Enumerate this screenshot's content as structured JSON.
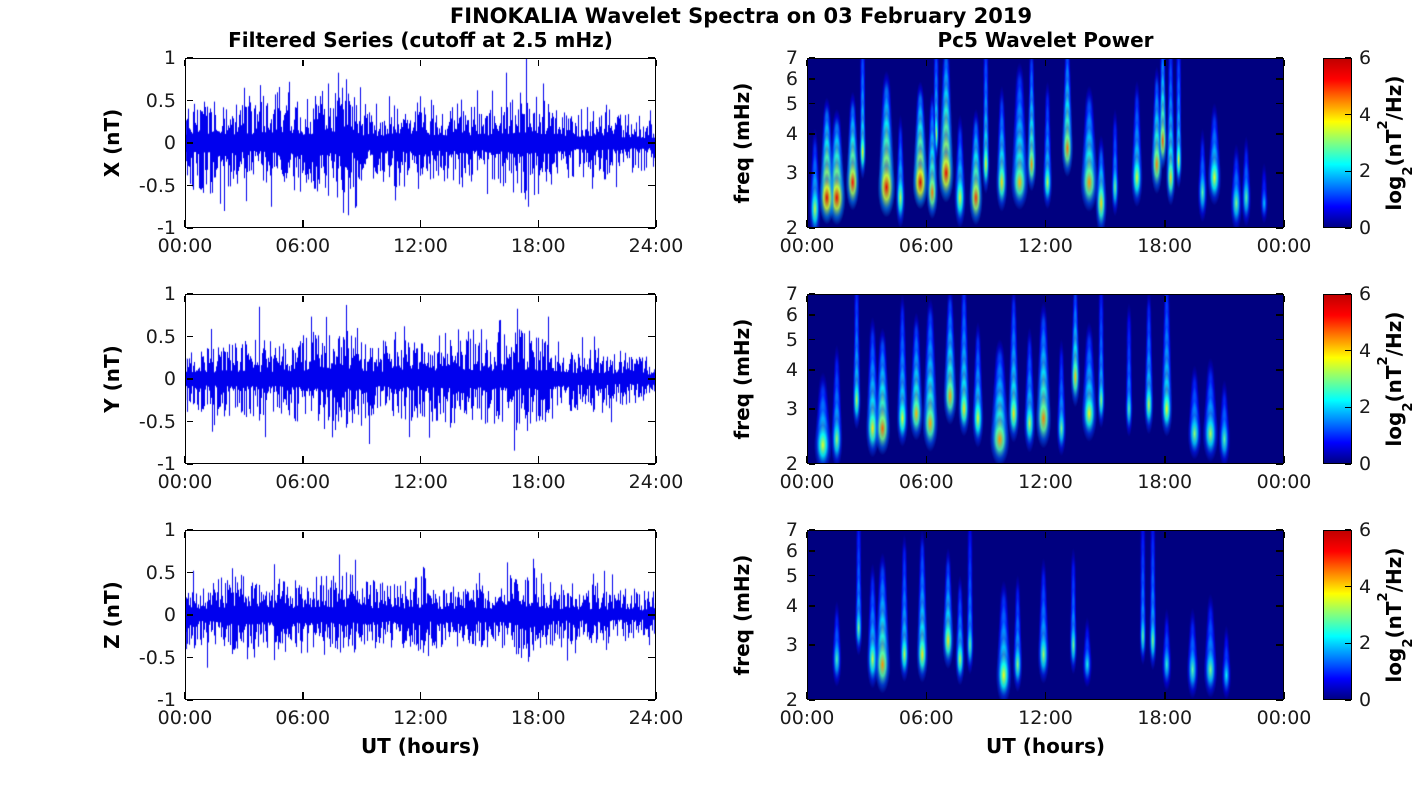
{
  "chart_data": {
    "figure_title": "FINOKALIA Wavelet Spectra on 03 February 2019",
    "filtered_series": {
      "type": "line",
      "title": "Filtered Series (cutoff at 2.5 mHz)",
      "xlabel": "UT (hours)",
      "x_range_hours": [
        0,
        24
      ],
      "x_tick_hours": [
        0,
        6,
        12,
        18,
        24
      ],
      "x_tick_labels": [
        "00:00",
        "06:00",
        "12:00",
        "18:00",
        "24:00"
      ],
      "ylim": [
        -1,
        1
      ],
      "y_tick_values": [
        1,
        0.5,
        0,
        -0.5,
        -1
      ],
      "y_tick_labels": [
        "1",
        "0.5",
        "0",
        "-0.5",
        "-1"
      ],
      "line_color": "#0000ee",
      "grid": false,
      "panels": [
        {
          "component": "X",
          "ylabel": "X (nT)",
          "seed": 7,
          "amplitude_envelope_hourly": [
            0.35,
            0.4,
            0.35,
            0.3,
            0.35,
            0.4,
            0.35,
            0.4,
            0.45,
            0.3,
            0.3,
            0.35,
            0.3,
            0.3,
            0.35,
            0.3,
            0.3,
            0.45,
            0.4,
            0.3,
            0.25,
            0.3,
            0.25,
            0.22,
            0.2
          ],
          "peak_events": [
            [
              17.4,
              1.0
            ],
            [
              17.5,
              -0.75
            ],
            [
              8.2,
              0.75
            ],
            [
              8.3,
              -0.85
            ],
            [
              5.3,
              0.72
            ],
            [
              2.0,
              -0.8
            ],
            [
              3.0,
              0.65
            ],
            [
              4.4,
              -0.75
            ],
            [
              7.3,
              0.7
            ],
            [
              10.4,
              0.55
            ],
            [
              14.9,
              0.62
            ],
            [
              15.4,
              -0.6
            ],
            [
              18.3,
              0.7
            ],
            [
              18.0,
              -0.6
            ],
            [
              12.0,
              0.55
            ],
            [
              21.5,
              0.45
            ]
          ]
        },
        {
          "component": "Y",
          "ylabel": "Y (nT)",
          "seed": 13,
          "amplitude_envelope_hourly": [
            0.3,
            0.25,
            0.3,
            0.3,
            0.3,
            0.3,
            0.35,
            0.4,
            0.4,
            0.35,
            0.3,
            0.35,
            0.3,
            0.35,
            0.4,
            0.35,
            0.35,
            0.4,
            0.35,
            0.3,
            0.25,
            0.25,
            0.22,
            0.2,
            0.18
          ],
          "peak_events": [
            [
              3.8,
              0.85
            ],
            [
              1.4,
              -0.62
            ],
            [
              8.8,
              0.6
            ],
            [
              9.0,
              -0.55
            ],
            [
              11.2,
              0.62
            ],
            [
              14.7,
              0.58
            ],
            [
              17.9,
              -0.5
            ],
            [
              12.6,
              -0.5
            ],
            [
              16.0,
              0.55
            ],
            [
              20.9,
              0.5
            ],
            [
              4.1,
              -0.55
            ]
          ]
        },
        {
          "component": "Z",
          "ylabel": "Z (nT)",
          "seed": 21,
          "amplitude_envelope_hourly": [
            0.3,
            0.25,
            0.3,
            0.35,
            0.3,
            0.28,
            0.3,
            0.3,
            0.35,
            0.3,
            0.25,
            0.25,
            0.3,
            0.25,
            0.25,
            0.25,
            0.25,
            0.35,
            0.3,
            0.25,
            0.22,
            0.25,
            0.2,
            0.2,
            0.18
          ],
          "peak_events": [
            [
              8.7,
              0.65
            ],
            [
              0.4,
              0.52
            ],
            [
              1.1,
              -0.62
            ],
            [
              2.4,
              0.55
            ],
            [
              3.5,
              -0.5
            ],
            [
              12.2,
              0.55
            ],
            [
              17.8,
              0.55
            ],
            [
              17.5,
              -0.55
            ],
            [
              19.9,
              -0.45
            ],
            [
              21.4,
              0.52
            ],
            [
              5.9,
              -0.45
            ]
          ]
        }
      ]
    },
    "wavelet_power": {
      "type": "heatmap",
      "title": "Pc5 Wavelet Power",
      "xlabel": "UT (hours)",
      "x_range_hours": [
        0,
        24
      ],
      "x_tick_hours": [
        0,
        6,
        12,
        18,
        24
      ],
      "x_tick_labels": [
        "00:00",
        "06:00",
        "12:00",
        "18:00",
        "00:00"
      ],
      "ylabel": "freq (mHz)",
      "y_scale": "log",
      "freq_range_mhz": [
        2,
        7
      ],
      "y_tick_values": [
        7,
        6,
        5,
        4,
        3,
        2
      ],
      "y_tick_labels": [
        "7",
        "6",
        "5",
        "4",
        "3",
        "2"
      ],
      "colormap": "jet",
      "background_power": 0,
      "colorbar": {
        "range": [
          0,
          6
        ],
        "tick_values": [
          6,
          4,
          2,
          0
        ],
        "tick_labels": [
          "6",
          "4",
          "2",
          "0"
        ],
        "label": {
          "pre": "log",
          "sub": "2",
          "mid": "(nT",
          "sup": "2",
          "post": "/Hz)"
        }
      },
      "panels": [
        {
          "component": "X",
          "bursts": [
            [
              0.4,
              2.3,
              3.4,
              0.3,
              3.8
            ],
            [
              1.0,
              2.5,
              5.6,
              0.4,
              4.8
            ],
            [
              1.5,
              2.5,
              5.5,
              0.45,
              4.4
            ],
            [
              2.3,
              2.8,
              5.2,
              0.35,
              5.0
            ],
            [
              2.8,
              3.5,
              3.8,
              0.18,
              7.7
            ],
            [
              4.0,
              2.7,
              5.5,
              0.45,
              5.8
            ],
            [
              4.7,
              2.5,
              3.4,
              0.25,
              4.2
            ],
            [
              5.7,
              2.8,
              5.7,
              0.4,
              5.4
            ],
            [
              6.3,
              2.6,
              4.6,
              0.3,
              5.0
            ],
            [
              6.5,
              4.0,
              3.6,
              0.15,
              7.7
            ],
            [
              7.0,
              3.0,
              5.5,
              0.4,
              7.2
            ],
            [
              7.7,
              2.5,
              3.6,
              0.3,
              4.2
            ],
            [
              8.5,
              2.5,
              5.0,
              0.35,
              4.4
            ],
            [
              9.0,
              3.2,
              3.8,
              0.2,
              7.7
            ],
            [
              9.8,
              2.8,
              4.0,
              0.3,
              5.2
            ],
            [
              10.7,
              2.8,
              4.2,
              0.45,
              6.2
            ],
            [
              11.3,
              3.2,
              4.4,
              0.25,
              7.0
            ],
            [
              12.1,
              2.8,
              3.4,
              0.25,
              5.4
            ],
            [
              13.1,
              3.6,
              4.6,
              0.3,
              7.4
            ],
            [
              14.2,
              2.8,
              4.4,
              0.45,
              5.2
            ],
            [
              14.8,
              2.4,
              4.0,
              0.3,
              3.6
            ],
            [
              15.5,
              2.7,
              3.0,
              0.2,
              4.4
            ],
            [
              16.6,
              2.9,
              3.6,
              0.3,
              5.4
            ],
            [
              17.6,
              3.2,
              4.5,
              0.3,
              6.0
            ],
            [
              17.9,
              3.8,
              4.8,
              0.22,
              7.7
            ],
            [
              18.3,
              2.9,
              4.0,
              0.25,
              7.4
            ],
            [
              18.7,
              3.3,
              3.6,
              0.18,
              7.6
            ],
            [
              19.9,
              2.6,
              2.8,
              0.25,
              3.8
            ],
            [
              20.5,
              2.9,
              3.6,
              0.35,
              4.6
            ],
            [
              21.6,
              2.4,
              3.0,
              0.3,
              3.4
            ],
            [
              22.1,
              2.5,
              2.8,
              0.25,
              3.6
            ],
            [
              23.0,
              2.4,
              2.0,
              0.2,
              3.0
            ]
          ]
        },
        {
          "component": "Y",
          "bursts": [
            [
              0.8,
              2.3,
              3.6,
              0.45,
              3.6
            ],
            [
              1.5,
              2.4,
              3.2,
              0.3,
              4.4
            ],
            [
              2.5,
              3.2,
              3.4,
              0.22,
              7.6
            ],
            [
              3.3,
              2.6,
              3.9,
              0.35,
              5.4
            ],
            [
              3.8,
              2.6,
              4.7,
              0.4,
              5.0
            ],
            [
              4.8,
              2.8,
              3.6,
              0.3,
              6.4
            ],
            [
              5.5,
              2.9,
              4.2,
              0.35,
              5.6
            ],
            [
              6.2,
              2.7,
              4.3,
              0.4,
              6.2
            ],
            [
              7.2,
              3.3,
              4.3,
              0.35,
              6.8
            ],
            [
              7.9,
              3.0,
              3.9,
              0.3,
              7.4
            ],
            [
              8.6,
              2.8,
              3.6,
              0.3,
              5.2
            ],
            [
              9.7,
              2.4,
              4.4,
              0.5,
              4.6
            ],
            [
              10.4,
              2.9,
              3.9,
              0.3,
              6.8
            ],
            [
              11.2,
              2.7,
              3.4,
              0.3,
              5.0
            ],
            [
              11.9,
              2.8,
              4.5,
              0.4,
              6.0
            ],
            [
              12.8,
              2.6,
              3.0,
              0.25,
              4.6
            ],
            [
              13.5,
              3.8,
              4.1,
              0.25,
              7.2
            ],
            [
              14.2,
              2.9,
              3.8,
              0.4,
              5.2
            ],
            [
              14.8,
              3.2,
              3.2,
              0.2,
              7.2
            ],
            [
              16.2,
              3.0,
              2.8,
              0.2,
              6.0
            ],
            [
              17.2,
              3.1,
              3.4,
              0.25,
              6.6
            ],
            [
              18.1,
              3.0,
              3.7,
              0.3,
              7.5
            ],
            [
              19.5,
              2.5,
              3.1,
              0.35,
              3.8
            ],
            [
              20.3,
              2.5,
              3.3,
              0.4,
              4.0
            ],
            [
              21.0,
              2.4,
              2.8,
              0.3,
              3.4
            ]
          ]
        },
        {
          "component": "Z",
          "bursts": [
            [
              1.5,
              2.7,
              2.7,
              0.25,
              3.8
            ],
            [
              2.6,
              3.4,
              3.0,
              0.2,
              7.6
            ],
            [
              3.3,
              2.7,
              3.4,
              0.3,
              5.0
            ],
            [
              3.8,
              2.6,
              4.4,
              0.4,
              5.4
            ],
            [
              4.9,
              2.8,
              3.4,
              0.25,
              6.2
            ],
            [
              5.8,
              2.8,
              3.9,
              0.3,
              6.4
            ],
            [
              7.1,
              3.1,
              3.9,
              0.3,
              5.6
            ],
            [
              7.7,
              2.7,
              3.4,
              0.25,
              4.6
            ],
            [
              8.2,
              3.0,
              2.9,
              0.2,
              7.2
            ],
            [
              9.9,
              2.4,
              3.7,
              0.4,
              4.4
            ],
            [
              10.6,
              2.6,
              3.1,
              0.25,
              4.6
            ],
            [
              11.9,
              2.8,
              3.2,
              0.3,
              5.2
            ],
            [
              13.4,
              3.0,
              3.0,
              0.2,
              5.6
            ],
            [
              14.1,
              2.6,
              2.4,
              0.25,
              3.4
            ],
            [
              16.9,
              3.2,
              2.9,
              0.18,
              7.5
            ],
            [
              17.4,
              3.1,
              3.1,
              0.2,
              7.5
            ],
            [
              18.1,
              2.6,
              2.5,
              0.25,
              3.6
            ],
            [
              19.4,
              2.5,
              2.8,
              0.3,
              3.6
            ],
            [
              20.3,
              2.5,
              3.0,
              0.35,
              4.0
            ],
            [
              21.1,
              2.4,
              2.3,
              0.25,
              3.2
            ]
          ]
        }
      ]
    }
  }
}
